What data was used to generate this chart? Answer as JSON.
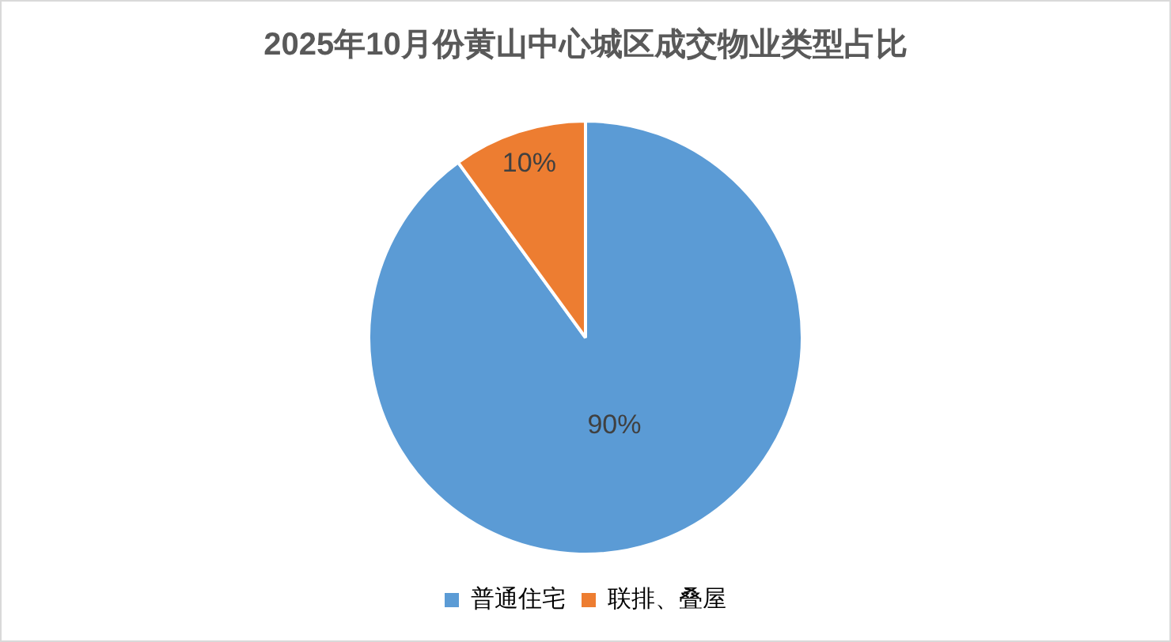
{
  "chart_data": {
    "type": "pie",
    "title": "2025年10月份黄山中心城区成交物业类型占比",
    "categories": [
      "普通住宅",
      "联排、叠屋"
    ],
    "values": [
      90,
      10
    ],
    "colors": [
      "#5b9bd5",
      "#ed7d31"
    ],
    "value_labels": [
      "90%",
      "10%"
    ],
    "legend": "bottom"
  }
}
